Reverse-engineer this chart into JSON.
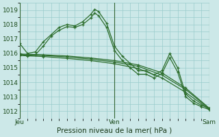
{
  "background_color": "#cce8e8",
  "plot_bg_color": "#cce8e8",
  "grid_color": "#99cccc",
  "line_color": "#2d6e2d",
  "border_color": "#336633",
  "xlim": [
    0,
    48
  ],
  "ylim": [
    1011.5,
    1019.5
  ],
  "yticks": [
    1012,
    1013,
    1014,
    1015,
    1016,
    1017,
    1018,
    1019
  ],
  "xtick_labels": [
    "Jeu",
    "Ven",
    "Sam"
  ],
  "xtick_positions": [
    0,
    24,
    48
  ],
  "xlabel": "Pression niveau de la mer( hPa )",
  "lines": [
    {
      "x": [
        0,
        2,
        4,
        6,
        8,
        10,
        12,
        14,
        16,
        18,
        19,
        20,
        22,
        24,
        26,
        28,
        30,
        32,
        34,
        36,
        38,
        40,
        42,
        44,
        46,
        48
      ],
      "y": [
        1016.7,
        1016.0,
        1016.1,
        1016.8,
        1017.3,
        1017.8,
        1018.0,
        1017.9,
        1018.2,
        1018.7,
        1019.05,
        1018.9,
        1018.1,
        1016.5,
        1015.8,
        1015.3,
        1014.8,
        1014.8,
        1014.5,
        1014.8,
        1016.0,
        1015.0,
        1013.2,
        1012.7,
        1012.4,
        1012.2
      ],
      "marker": "+"
    },
    {
      "x": [
        0,
        2,
        4,
        6,
        8,
        10,
        12,
        14,
        16,
        18,
        19,
        20,
        22,
        24,
        26,
        28,
        30,
        32,
        34,
        36,
        38,
        40,
        42,
        44,
        46,
        48
      ],
      "y": [
        1016.0,
        1015.8,
        1015.9,
        1016.5,
        1017.2,
        1017.6,
        1017.85,
        1017.8,
        1018.0,
        1018.45,
        1018.8,
        1018.6,
        1017.8,
        1016.2,
        1015.5,
        1015.0,
        1014.55,
        1014.55,
        1014.3,
        1014.6,
        1015.7,
        1014.7,
        1013.0,
        1012.55,
        1012.3,
        1012.1
      ],
      "marker": "+"
    },
    {
      "x": [
        0,
        6,
        12,
        18,
        24,
        30,
        36,
        42,
        48
      ],
      "y": [
        1015.9,
        1015.85,
        1015.75,
        1015.6,
        1015.4,
        1015.1,
        1014.5,
        1013.5,
        1012.15
      ],
      "marker": "+"
    },
    {
      "x": [
        0,
        6,
        12,
        18,
        24,
        30,
        36,
        42,
        48
      ],
      "y": [
        1015.95,
        1015.9,
        1015.82,
        1015.68,
        1015.5,
        1015.2,
        1014.65,
        1013.6,
        1012.2
      ],
      "marker": "+"
    },
    {
      "x": [
        0,
        6,
        12,
        18,
        24,
        30,
        36,
        42,
        48
      ],
      "y": [
        1015.85,
        1015.78,
        1015.65,
        1015.5,
        1015.28,
        1014.95,
        1014.3,
        1013.3,
        1012.1
      ],
      "marker": "+"
    }
  ],
  "vline_positions": [
    0,
    24,
    48
  ],
  "vline_color": "#336633",
  "tick_fontsize": 6.5,
  "xlabel_fontsize": 7.5
}
